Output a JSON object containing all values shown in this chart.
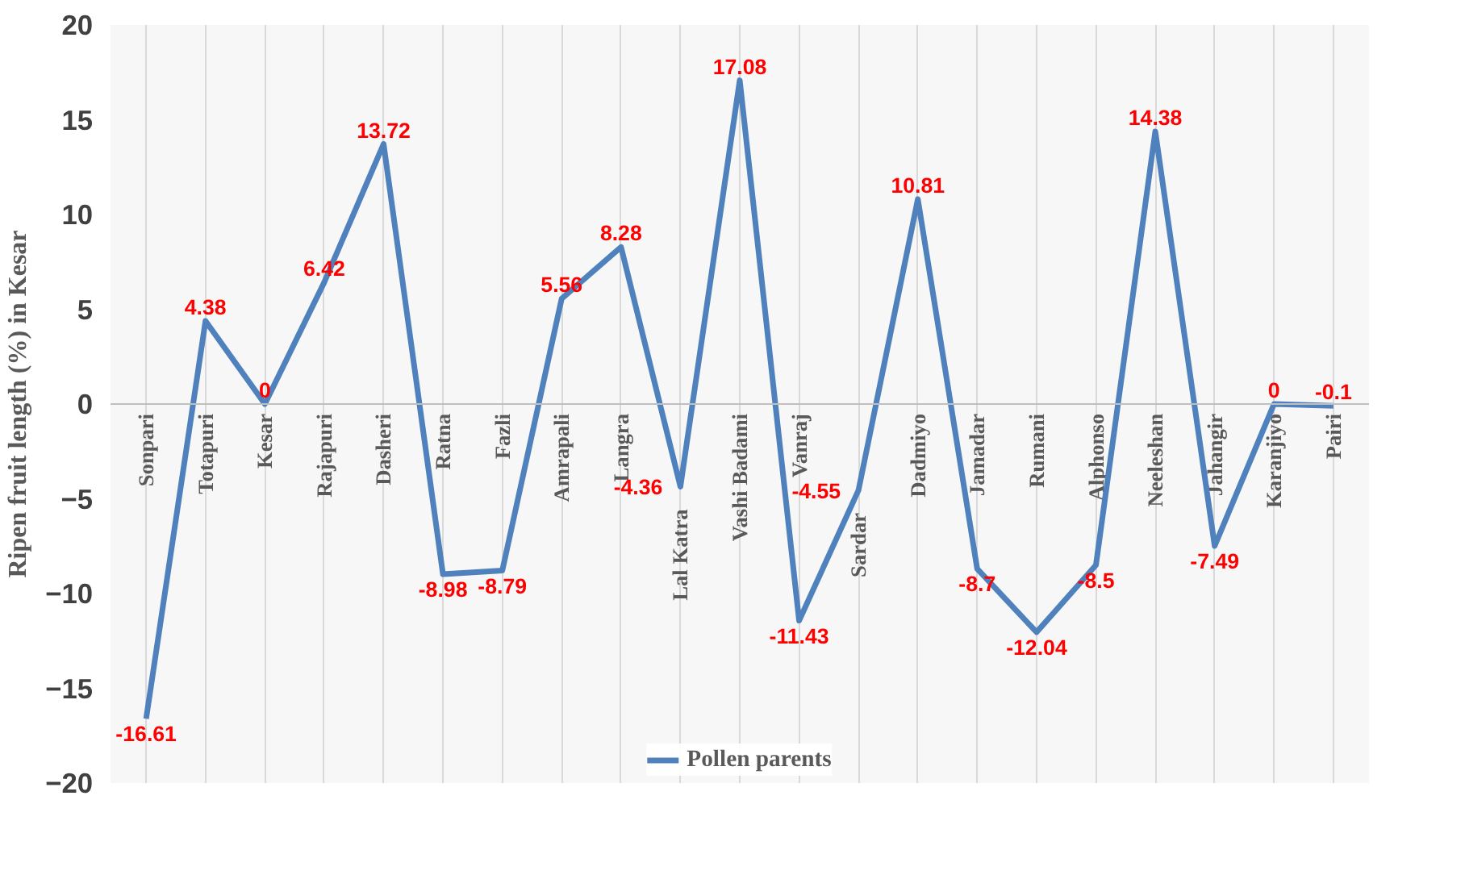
{
  "chart_data": {
    "type": "line",
    "ylabel": "Ripen fruit length (%) in Kesar",
    "categories": [
      "Sonpari",
      "Totapuri",
      "Kesar",
      "Rajapuri",
      "Dasheri",
      "Ratna",
      "Fazli",
      "Amrapali",
      "Langra",
      "Lal Katra",
      "Vashi Badami",
      "Vanraj",
      "Sardar",
      "Dadmiyo",
      "Jamadar",
      "Rumani",
      "Alphonso",
      "Neeleshan",
      "Jahangir",
      "Karanjiyo",
      "Pairi"
    ],
    "series": [
      {
        "name": "Pollen parents",
        "color": "#4f81bd",
        "values": [
          -16.61,
          4.38,
          0,
          6.42,
          13.72,
          -8.98,
          -8.79,
          5.56,
          8.28,
          -4.36,
          17.08,
          -11.43,
          -4.55,
          10.81,
          -8.7,
          -12.04,
          -8.5,
          14.38,
          -7.49,
          0,
          -0.1
        ]
      }
    ],
    "ylim": [
      -20,
      20
    ],
    "yticks": [
      -20,
      -15,
      -10,
      -5,
      0,
      5,
      10,
      15,
      20
    ],
    "data_labels": true,
    "grid": "x",
    "legend": "bottom",
    "marker": "none",
    "line_style": "solid"
  }
}
